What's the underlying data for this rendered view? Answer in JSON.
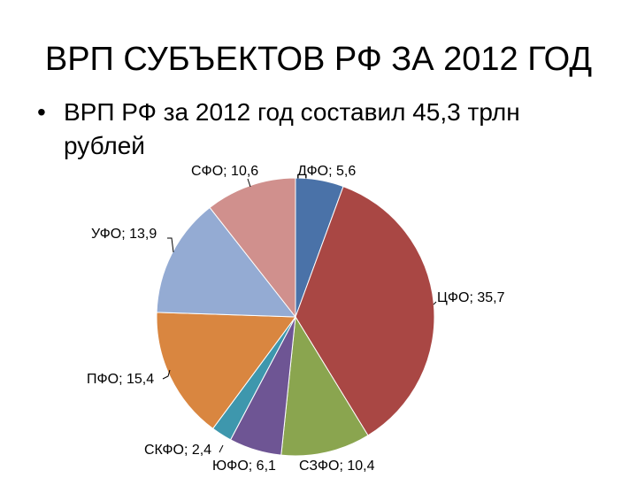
{
  "slide": {
    "title": "ВРП СУБЪЕКТОВ РФ ЗА 2012 ГОД",
    "bullet": "ВРП РФ за 2012 год составил 45,3 трлн рублей"
  },
  "chart_data": {
    "type": "pie",
    "title": "",
    "label_format": "{name}; {value}",
    "slices": [
      {
        "name": "ДФО",
        "value": 5.6,
        "display": "5,6",
        "color": "#4a72a8"
      },
      {
        "name": "ЦФО",
        "value": 35.7,
        "display": "35,7",
        "color": "#a94744"
      },
      {
        "name": "СЗФО",
        "value": 10.4,
        "display": "10,4",
        "color": "#8aa54f"
      },
      {
        "name": "ЮФО",
        "value": 6.1,
        "display": "6,1",
        "color": "#6e5594"
      },
      {
        "name": "СКФО",
        "value": 2.4,
        "display": "2,4",
        "color": "#3e97ad"
      },
      {
        "name": "ПФО",
        "value": 15.4,
        "display": "15,4",
        "color": "#d98640"
      },
      {
        "name": "УФО",
        "value": 13.9,
        "display": "13,9",
        "color": "#94abd3"
      },
      {
        "name": "СФО",
        "value": 10.6,
        "display": "10,6",
        "color": "#d0908d"
      }
    ]
  }
}
